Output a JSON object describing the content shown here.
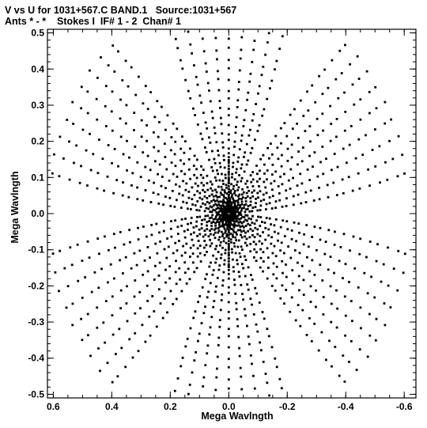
{
  "title_line1": "V vs U for 1031+567.C BAND.1   Source:1031+567",
  "title_line2": "Ants * - *    Stokes I  IF# 1 - 2  Chan# 1",
  "chart_data": {
    "type": "scatter",
    "xlabel": "Mega Wavlngth",
    "ylabel": "Mega Wavlngth",
    "xlim": [
      0.62,
      -0.64
    ],
    "ylim": [
      -0.51,
      0.51
    ],
    "x_reversed": true,
    "xticks": [
      0.6,
      0.4,
      0.2,
      0.0,
      -0.2,
      -0.4,
      -0.6
    ],
    "xtick_labels": [
      "0.6",
      "0.4",
      "0.2",
      "0.0",
      "-0.2",
      "-0.4",
      "-0.6"
    ],
    "yticks": [
      0.5,
      0.4,
      0.3,
      0.2,
      0.1,
      0.0,
      -0.1,
      -0.2,
      -0.3,
      -0.4,
      -0.5
    ],
    "ytick_labels": [
      "0.5",
      "0.4",
      "0.3",
      "0.2",
      "0.1",
      "0.0",
      "-0.1",
      "-0.2",
      "-0.3",
      "-0.4",
      "-0.5"
    ],
    "grid": false,
    "marker_color": "#000000",
    "pattern": "six-armed snowflake uv-coverage, symmetric about origin",
    "arm_angles_deg": [
      90,
      30,
      -30,
      -90,
      -150,
      150
    ],
    "baseline_radii": [
      0.012,
      0.022,
      0.032,
      0.044,
      0.056,
      0.068,
      0.082,
      0.097,
      0.112,
      0.128,
      0.145,
      0.163,
      0.182,
      0.202,
      0.223,
      0.245,
      0.268,
      0.292,
      0.317,
      0.343,
      0.37,
      0.398,
      0.427,
      0.457,
      0.488,
      0.52,
      0.552,
      0.585,
      0.615
    ],
    "track_half_width_deg": 26,
    "points_per_track": 9,
    "inner_spike": {
      "angles_deg": [
        90,
        -90
      ],
      "radii_max": 0.16,
      "step": 0.008
    }
  }
}
